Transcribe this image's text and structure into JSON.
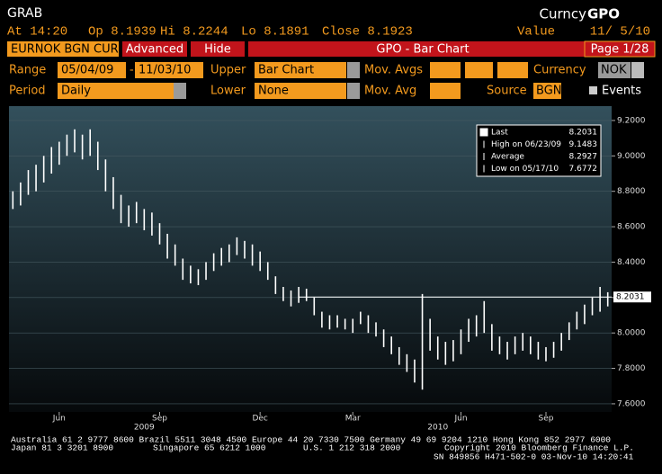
{
  "header": {
    "security": "GRAB",
    "market": "Curncy",
    "function": "GPO",
    "time": "At 14:20",
    "open": "Op 8.1939",
    "high": "Hi 8.2244",
    "low": "Lo 8.1891",
    "close": "Close 8.1923",
    "value_label": "Value",
    "value_date": "11/ 5/10"
  },
  "tabs": {
    "ticker": "EURNOK BGN CUR",
    "advanced": "Advanced",
    "hide": "Hide",
    "title": "GPO - Bar Chart",
    "page": "Page 1/28"
  },
  "form": {
    "range_label": "Range",
    "range_start": "05/04/09",
    "range_sep": "-",
    "range_end": "11/03/10",
    "upper_label": "Upper",
    "upper": "Bar Chart",
    "mov_avgs_label": "Mov. Avgs",
    "currency_label": "Currency",
    "currency": "NOK",
    "period_label": "Period",
    "period": "Daily",
    "lower_label": "Lower",
    "lower": "None",
    "mov_avg_label": "Mov. Avg",
    "source_label": "Source",
    "source": "BGN",
    "events_label": "Events"
  },
  "chart_data": {
    "type": "ohlc",
    "color": "#ffffff",
    "categories": [
      null,
      null,
      null,
      null,
      null,
      null,
      "Jun",
      null,
      null,
      null,
      null,
      null,
      null,
      null,
      null,
      null,
      null,
      null,
      null,
      "Sep",
      null,
      null,
      null,
      null,
      null,
      null,
      null,
      null,
      null,
      null,
      null,
      null,
      "Dec",
      null,
      null,
      null,
      null,
      null,
      null,
      null,
      null,
      null,
      null,
      null,
      "Mar",
      null,
      null,
      null,
      null,
      null,
      null,
      null,
      null,
      null,
      null,
      null,
      null,
      null,
      "Jun",
      null,
      null,
      null,
      null,
      null,
      null,
      null,
      null,
      null,
      null,
      "Sep",
      null,
      null,
      null,
      null,
      null,
      null,
      null,
      null
    ],
    "year_labels": [
      "2009",
      "2010"
    ],
    "low": [
      8.7,
      8.72,
      8.78,
      8.8,
      8.85,
      8.9,
      8.95,
      9.0,
      9.02,
      8.98,
      9.0,
      8.92,
      8.8,
      8.7,
      8.62,
      8.6,
      8.62,
      8.58,
      8.55,
      8.5,
      8.42,
      8.38,
      8.3,
      8.28,
      8.27,
      8.3,
      8.35,
      8.38,
      8.4,
      8.44,
      8.42,
      8.38,
      8.35,
      8.3,
      8.22,
      8.18,
      8.15,
      8.17,
      8.18,
      8.1,
      8.03,
      8.02,
      8.03,
      8.02,
      8.0,
      8.05,
      8.0,
      7.98,
      7.92,
      7.88,
      7.82,
      7.78,
      7.72,
      7.68,
      7.9,
      7.85,
      7.82,
      7.84,
      7.88,
      7.95,
      7.98,
      8.0,
      7.9,
      7.88,
      7.85,
      7.88,
      7.9,
      7.88,
      7.85,
      7.84,
      7.86,
      7.9,
      7.96,
      8.02,
      8.05,
      8.1,
      8.12,
      8.15
    ],
    "high": [
      8.8,
      8.85,
      8.92,
      8.95,
      9.0,
      9.05,
      9.08,
      9.12,
      9.15,
      9.12,
      9.15,
      9.08,
      8.98,
      8.88,
      8.78,
      8.72,
      8.74,
      8.7,
      8.68,
      8.62,
      8.56,
      8.5,
      8.42,
      8.38,
      8.36,
      8.4,
      8.45,
      8.48,
      8.5,
      8.54,
      8.52,
      8.5,
      8.46,
      8.4,
      8.32,
      8.26,
      8.24,
      8.26,
      8.25,
      8.2,
      8.12,
      8.1,
      8.1,
      8.08,
      8.08,
      8.12,
      8.1,
      8.06,
      8.02,
      7.98,
      7.92,
      7.88,
      7.85,
      8.22,
      8.08,
      7.98,
      7.95,
      7.96,
      8.02,
      8.08,
      8.1,
      8.18,
      8.05,
      7.98,
      7.95,
      7.98,
      8.0,
      7.98,
      7.95,
      7.92,
      7.95,
      8.0,
      8.06,
      8.12,
      8.16,
      8.2,
      8.26,
      8.23
    ],
    "ylim": [
      7.554,
      9.281
    ],
    "yticks": [
      {
        "value": 7.6,
        "label": "7.6000"
      },
      {
        "value": 7.8,
        "label": "7.8000"
      },
      {
        "value": 8.0,
        "label": "8.0000"
      },
      {
        "value": 8.2,
        "label": "8.2000"
      },
      {
        "value": 8.4,
        "label": "8.4000"
      },
      {
        "value": 8.6,
        "label": "8.6000"
      },
      {
        "value": 8.8,
        "label": "8.8000"
      },
      {
        "value": 9.0,
        "label": "9.0000"
      },
      {
        "value": 9.2,
        "label": "9.2000"
      }
    ],
    "legend": [
      {
        "label": "Last",
        "value": 8.2031
      },
      {
        "label": "High on 06/23/09",
        "value": 9.1483
      },
      {
        "label": "Average",
        "value": 8.2927
      },
      {
        "label": "Low on 05/17/10",
        "value": 7.6772
      }
    ]
  },
  "footer": {
    "line1": "Australia 61 2 9777 8600 Brazil 5511 3048 4500 Europe 44 20 7330 7500 Germany 49 69 9204 1210 Hong Kong 852 2977 6000",
    "line2a": "Japan 81 3 3201 8900",
    "line2b": "Singapore 65 6212 1000",
    "line2c": "U.S. 1 212 318 2000",
    "line2d": "Copyright 2010 Bloomberg Finance L.P.",
    "line3": "SN 849856 H471-502-0 03-Nov-10 14:20:41"
  }
}
